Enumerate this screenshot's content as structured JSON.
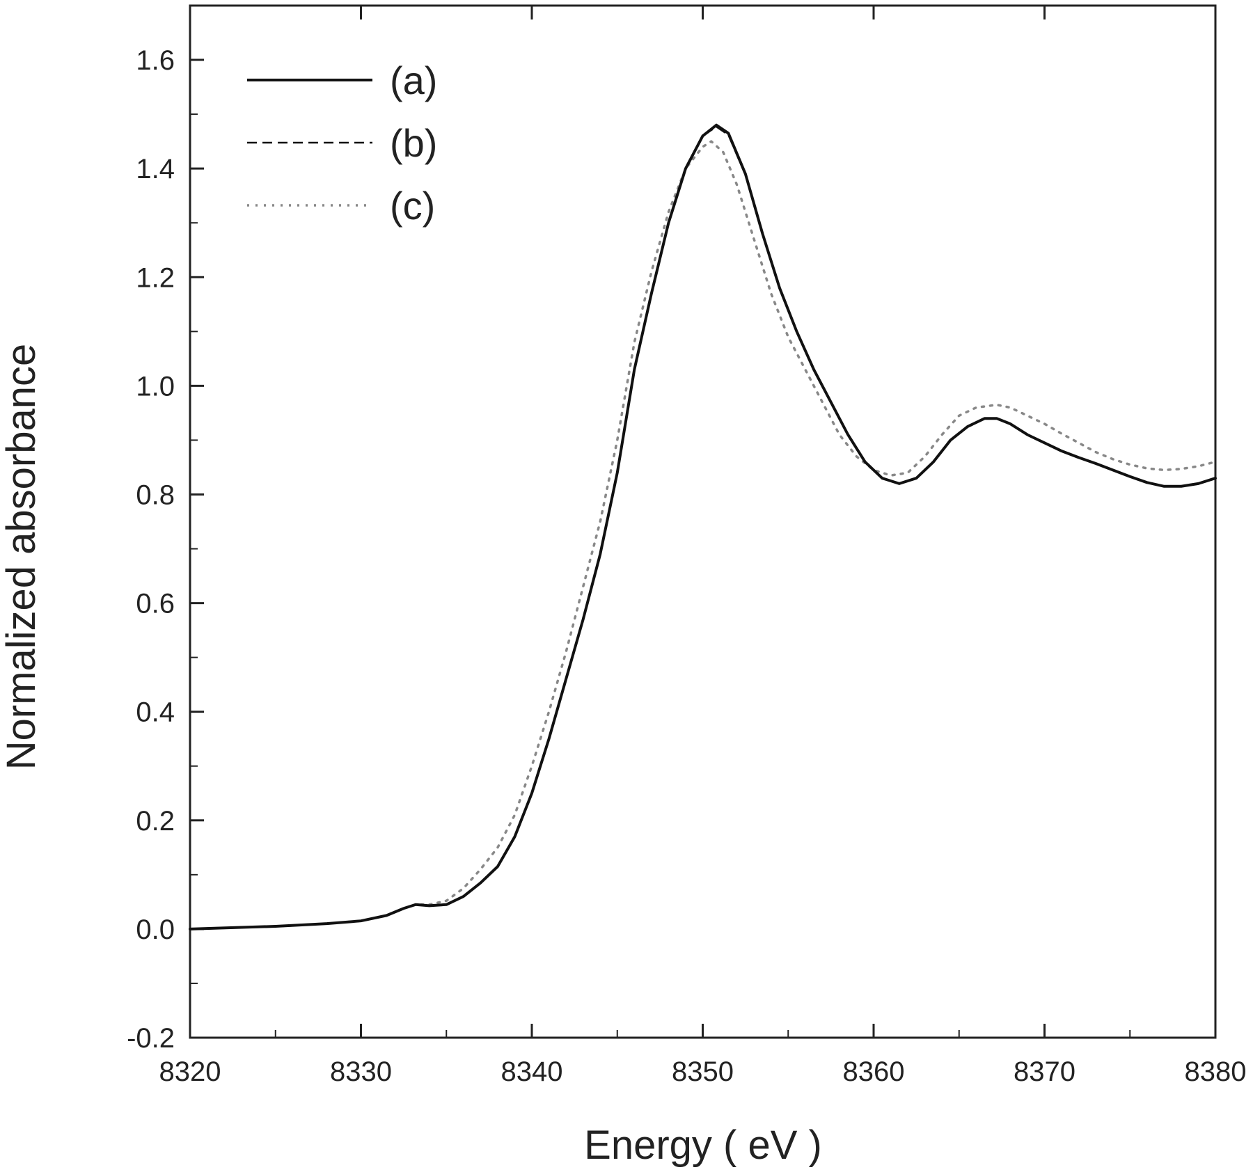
{
  "chart_data": {
    "type": "line",
    "title": "",
    "xlabel": "Energy ( eV )",
    "ylabel": "Normalized absorbance",
    "xlim": [
      8320,
      8380
    ],
    "ylim": [
      -0.2,
      1.7
    ],
    "x_ticks": [
      8320,
      8330,
      8340,
      8350,
      8360,
      8370,
      8380
    ],
    "x_tick_labels": [
      "8320",
      "8330",
      "8340",
      "8350",
      "8360",
      "8370",
      "8380"
    ],
    "y_ticks": [
      -0.2,
      0.0,
      0.2,
      0.4,
      0.6,
      0.8,
      1.0,
      1.2,
      1.4,
      1.6
    ],
    "y_tick_labels": [
      "-0.2",
      "0.0",
      "0.2",
      "0.4",
      "0.6",
      "0.8",
      "1.0",
      "1.2",
      "1.4",
      "1.6"
    ],
    "grid": false,
    "legend_position": "top-left",
    "series": [
      {
        "name": "(a)",
        "style": "solid",
        "color": "#111111",
        "x": [
          8320,
          8325,
          8328,
          8330,
          8331.5,
          8332.5,
          8333.2,
          8334,
          8335,
          8336,
          8337,
          8338,
          8339,
          8340,
          8341,
          8342,
          8343,
          8344,
          8345,
          8346,
          8347,
          8348,
          8349,
          8350,
          8350.8,
          8351.5,
          8352.5,
          8353.5,
          8354.5,
          8355.5,
          8356.5,
          8357.5,
          8358.5,
          8359.5,
          8360.5,
          8361.5,
          8362.5,
          8363.5,
          8364.5,
          8365.5,
          8366.5,
          8367.2,
          8368,
          8369,
          8370,
          8371,
          8372,
          8373,
          8374,
          8375,
          8376,
          8377,
          8378,
          8379,
          8380
        ],
        "y": [
          0.0,
          0.005,
          0.01,
          0.015,
          0.025,
          0.038,
          0.045,
          0.043,
          0.045,
          0.06,
          0.085,
          0.115,
          0.17,
          0.25,
          0.35,
          0.46,
          0.57,
          0.69,
          0.84,
          1.03,
          1.17,
          1.3,
          1.4,
          1.46,
          1.48,
          1.465,
          1.39,
          1.28,
          1.18,
          1.1,
          1.03,
          0.97,
          0.91,
          0.86,
          0.83,
          0.82,
          0.83,
          0.86,
          0.9,
          0.925,
          0.94,
          0.94,
          0.93,
          0.91,
          0.895,
          0.88,
          0.868,
          0.857,
          0.845,
          0.833,
          0.822,
          0.815,
          0.815,
          0.82,
          0.83
        ]
      },
      {
        "name": "(b)",
        "style": "dashed",
        "color": "#111111",
        "x": [
          8320,
          8325,
          8328,
          8330,
          8331.5,
          8332.5,
          8333.2,
          8334,
          8335,
          8336,
          8337,
          8338,
          8339,
          8340,
          8341,
          8342,
          8343,
          8344,
          8345,
          8346,
          8347,
          8348,
          8349,
          8350,
          8350.8,
          8351.5,
          8352.5,
          8353.5,
          8354.5,
          8355.5,
          8356.5,
          8357.5,
          8358.5,
          8359.5,
          8360.5,
          8361.5,
          8362.5,
          8363.5,
          8364.5,
          8365.5,
          8366.5,
          8367.2,
          8368,
          8369,
          8370,
          8371,
          8372,
          8373,
          8374,
          8375,
          8376,
          8377,
          8378,
          8379,
          8380
        ],
        "y": [
          0.0,
          0.005,
          0.01,
          0.015,
          0.025,
          0.038,
          0.045,
          0.043,
          0.045,
          0.06,
          0.085,
          0.115,
          0.17,
          0.25,
          0.35,
          0.46,
          0.57,
          0.69,
          0.84,
          1.03,
          1.17,
          1.3,
          1.4,
          1.46,
          1.477,
          1.462,
          1.388,
          1.28,
          1.18,
          1.1,
          1.03,
          0.97,
          0.91,
          0.86,
          0.83,
          0.82,
          0.83,
          0.86,
          0.9,
          0.925,
          0.94,
          0.94,
          0.93,
          0.91,
          0.895,
          0.88,
          0.868,
          0.857,
          0.845,
          0.833,
          0.822,
          0.815,
          0.815,
          0.82,
          0.83
        ]
      },
      {
        "name": "(c)",
        "style": "dotted",
        "color": "#888888",
        "x": [
          8320,
          8325,
          8328,
          8330,
          8331.5,
          8332.5,
          8333.2,
          8334,
          8335,
          8336,
          8337,
          8338,
          8339,
          8340,
          8341,
          8342,
          8343,
          8344,
          8345,
          8346,
          8347,
          8348,
          8349,
          8350,
          8350.5,
          8351.2,
          8352,
          8353,
          8354,
          8355,
          8356,
          8357,
          8358,
          8359,
          8360,
          8361,
          8362,
          8363,
          8364,
          8365,
          8366,
          8367.2,
          8368,
          8369,
          8370,
          8371,
          8372,
          8373,
          8374,
          8375,
          8376,
          8377,
          8378,
          8379,
          8380
        ],
        "y": [
          0.0,
          0.005,
          0.01,
          0.015,
          0.025,
          0.038,
          0.045,
          0.045,
          0.052,
          0.075,
          0.11,
          0.15,
          0.21,
          0.3,
          0.4,
          0.51,
          0.63,
          0.75,
          0.9,
          1.08,
          1.21,
          1.32,
          1.4,
          1.44,
          1.45,
          1.43,
          1.37,
          1.27,
          1.17,
          1.09,
          1.03,
          0.97,
          0.91,
          0.87,
          0.845,
          0.835,
          0.84,
          0.87,
          0.91,
          0.945,
          0.96,
          0.965,
          0.96,
          0.945,
          0.93,
          0.912,
          0.895,
          0.878,
          0.865,
          0.855,
          0.848,
          0.845,
          0.847,
          0.852,
          0.86
        ]
      }
    ]
  }
}
